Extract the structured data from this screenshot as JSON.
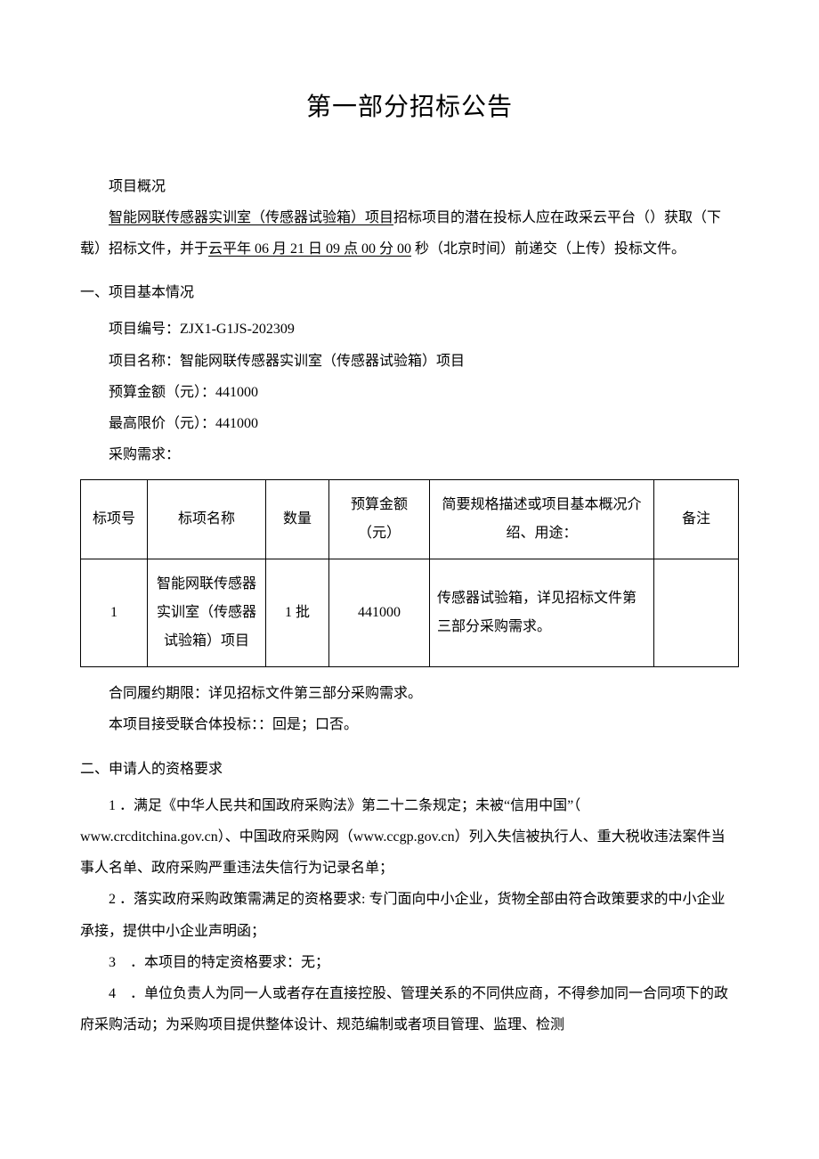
{
  "title": "第一部分招标公告",
  "overview_label": "项目概况",
  "intro_underlined_1": "智能网联传感器实训室（传感器试验箱）项目",
  "intro_mid_1": "招标项目的潜在投标人应在政采云平台（）获取（下载）招标文件，并于",
  "intro_underlined_2": "云平年 06 月 21 日 09 点 00 分 00",
  "intro_tail": " 秒（北京时间）前递交（上传）投标文件。",
  "sec1_title": "一、项目基本情况",
  "proj_no_label": "项目编号：",
  "proj_no": "ZJX1-G1JS-202309",
  "proj_name_label": "项目名称：",
  "proj_name": "智能网联传感器实训室（传感器试验箱）项目",
  "budget_label": "预算金额（元）：",
  "budget": "441000",
  "max_label": "最高限价（元）：",
  "max": "441000",
  "demand_label": "采购需求：",
  "table": {
    "headers": {
      "c1": "标项号",
      "c2": "标项名称",
      "c3": "数量",
      "c4": "预算金额（元）",
      "c5": "简要规格描述或项目基本概况介绍、用途：",
      "c6": "备注"
    },
    "row": {
      "c1": "1",
      "c2": "智能网联传感器实训室（传感器试验箱）项目",
      "c3": "1 批",
      "c4": "441000",
      "c5": "传感器试验箱，详见招标文件第三部分采购需求。",
      "c6": ""
    }
  },
  "contract_term": "合同履约期限：详见招标文件第三部分采购需求。",
  "consortium": "本项目接受联合体投标：：回是；口否。",
  "sec2_title": "二、申请人的资格要求",
  "req1": "1 ．满足《中华人民共和国政府采购法》第二十二条规定；未被“信用中国”（ www.crcditchina.gov.cn）、中国政府采购网（www.ccgp.gov.cn）列入失信被执行人、重大税收违法案件当事人名单、政府采购严重违法失信行为记录名单；",
  "req2": "2 ．落实政府采购政策需满足的资格要求: 专门面向中小企业，货物全部由符合政策要求的中小企业承接，提供中小企业声明函；",
  "req3": "3 ．本项目的特定资格要求：无；",
  "req4": "4 ．单位负责人为同一人或者存在直接控股、管理关系的不同供应商，不得参加同一合同项下的政府采购活动；为采购项目提供整体设计、规范编制或者项目管理、监理、检测"
}
